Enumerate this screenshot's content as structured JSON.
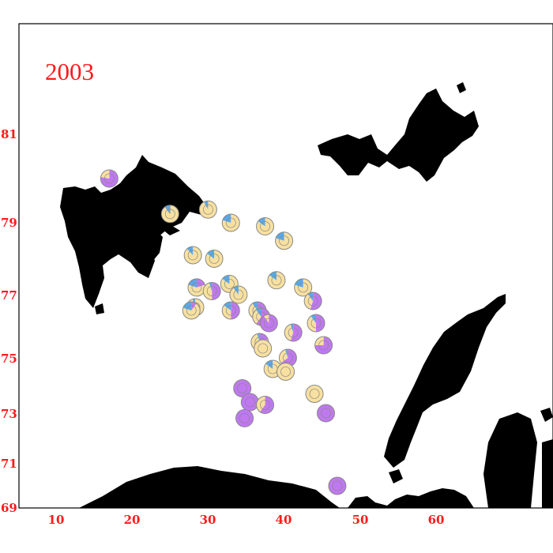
{
  "title": "2003",
  "colors": {
    "label": "#ff1a1a",
    "land": "#000000",
    "frame": "#000000",
    "purple": "#c078f0",
    "yellow": "#f8e0a0",
    "blue": "#5aa8e8",
    "marker_stroke": "#888888"
  },
  "y_ticks": [
    "81",
    "79",
    "77",
    "75",
    "73",
    "71",
    "69"
  ],
  "x_ticks": [
    "10",
    "20",
    "30",
    "40",
    "50",
    "60"
  ],
  "stations": [
    {
      "lon": 17.0,
      "lat": 80.0,
      "purple": 0.78,
      "yellow": 0.22,
      "blue": 0.0
    },
    {
      "lon": 25.0,
      "lat": 79.2,
      "purple": 0.0,
      "yellow": 0.9,
      "blue": 0.1
    },
    {
      "lon": 30.0,
      "lat": 79.3,
      "purple": 0.0,
      "yellow": 0.92,
      "blue": 0.08
    },
    {
      "lon": 33.0,
      "lat": 79.0,
      "purple": 0.0,
      "yellow": 0.8,
      "blue": 0.2
    },
    {
      "lon": 37.5,
      "lat": 78.9,
      "purple": 0.0,
      "yellow": 0.85,
      "blue": 0.15
    },
    {
      "lon": 40.0,
      "lat": 78.5,
      "purple": 0.0,
      "yellow": 0.8,
      "blue": 0.2
    },
    {
      "lon": 28.0,
      "lat": 78.1,
      "purple": 0.0,
      "yellow": 0.88,
      "blue": 0.12
    },
    {
      "lon": 30.8,
      "lat": 78.0,
      "purple": 0.0,
      "yellow": 0.85,
      "blue": 0.15
    },
    {
      "lon": 39.0,
      "lat": 77.4,
      "purple": 0.0,
      "yellow": 0.85,
      "blue": 0.15
    },
    {
      "lon": 42.5,
      "lat": 77.2,
      "purple": 0.0,
      "yellow": 0.8,
      "blue": 0.2
    },
    {
      "lon": 28.5,
      "lat": 77.2,
      "purple": 0.2,
      "yellow": 0.6,
      "blue": 0.2
    },
    {
      "lon": 30.5,
      "lat": 77.1,
      "purple": 0.5,
      "yellow": 0.45,
      "blue": 0.05
    },
    {
      "lon": 32.8,
      "lat": 77.3,
      "purple": 0.0,
      "yellow": 0.85,
      "blue": 0.15
    },
    {
      "lon": 34.0,
      "lat": 77.0,
      "purple": 0.0,
      "yellow": 0.9,
      "blue": 0.1
    },
    {
      "lon": 28.3,
      "lat": 76.6,
      "purple": 0.0,
      "yellow": 0.95,
      "blue": 0.05
    },
    {
      "lon": 43.8,
      "lat": 76.8,
      "purple": 0.55,
      "yellow": 0.35,
      "blue": 0.1
    },
    {
      "lon": 27.8,
      "lat": 76.5,
      "purple": 0.1,
      "yellow": 0.7,
      "blue": 0.2
    },
    {
      "lon": 33.0,
      "lat": 76.5,
      "purple": 0.5,
      "yellow": 0.35,
      "blue": 0.15
    },
    {
      "lon": 36.5,
      "lat": 76.5,
      "purple": 0.45,
      "yellow": 0.45,
      "blue": 0.1
    },
    {
      "lon": 37.0,
      "lat": 76.3,
      "purple": 0.6,
      "yellow": 0.3,
      "blue": 0.1
    },
    {
      "lon": 38.0,
      "lat": 76.1,
      "purple": 0.9,
      "yellow": 0.1,
      "blue": 0.0
    },
    {
      "lon": 44.2,
      "lat": 76.1,
      "purple": 0.5,
      "yellow": 0.4,
      "blue": 0.1
    },
    {
      "lon": 41.2,
      "lat": 75.8,
      "purple": 0.55,
      "yellow": 0.4,
      "blue": 0.05
    },
    {
      "lon": 36.8,
      "lat": 75.5,
      "purple": 0.2,
      "yellow": 0.75,
      "blue": 0.05
    },
    {
      "lon": 37.2,
      "lat": 75.3,
      "purple": 0.0,
      "yellow": 1.0,
      "blue": 0.0
    },
    {
      "lon": 45.2,
      "lat": 75.4,
      "purple": 0.75,
      "yellow": 0.25,
      "blue": 0.0
    },
    {
      "lon": 40.5,
      "lat": 75.0,
      "purple": 0.65,
      "yellow": 0.3,
      "blue": 0.05
    },
    {
      "lon": 38.5,
      "lat": 74.6,
      "purple": 0.0,
      "yellow": 0.85,
      "blue": 0.15
    },
    {
      "lon": 40.2,
      "lat": 74.5,
      "purple": 0.0,
      "yellow": 1.0,
      "blue": 0.0
    },
    {
      "lon": 34.5,
      "lat": 73.9,
      "purple": 1.0,
      "yellow": 0.0,
      "blue": 0.0
    },
    {
      "lon": 44.0,
      "lat": 73.7,
      "purple": 0.0,
      "yellow": 1.0,
      "blue": 0.0
    },
    {
      "lon": 35.5,
      "lat": 73.4,
      "purple": 1.0,
      "yellow": 0.0,
      "blue": 0.0
    },
    {
      "lon": 37.5,
      "lat": 73.3,
      "purple": 0.6,
      "yellow": 0.4,
      "blue": 0.0
    },
    {
      "lon": 45.5,
      "lat": 73.0,
      "purple": 1.0,
      "yellow": 0.0,
      "blue": 0.0
    },
    {
      "lon": 34.8,
      "lat": 72.8,
      "purple": 1.0,
      "yellow": 0.0,
      "blue": 0.0
    },
    {
      "lon": 47.0,
      "lat": 70.0,
      "purple": 1.0,
      "yellow": 0.0,
      "blue": 0.0
    }
  ]
}
